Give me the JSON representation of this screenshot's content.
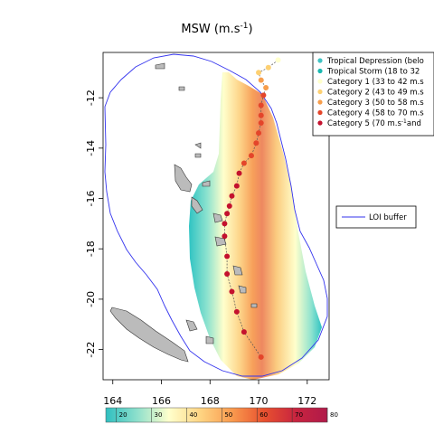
{
  "title": {
    "main": "MSW (m.s",
    "sup": "-1",
    "close": ")"
  },
  "x_axis": {
    "ticks": [
      {
        "v": 164,
        "label": "164"
      },
      {
        "v": 166,
        "label": "166"
      },
      {
        "v": 168,
        "label": "168"
      },
      {
        "v": 170,
        "label": "170"
      },
      {
        "v": 172,
        "label": "172"
      }
    ],
    "range": [
      163.6,
      172.9
    ]
  },
  "y_axis": {
    "ticks": [
      {
        "v": -12,
        "label": "-12"
      },
      {
        "v": -14,
        "label": "-14"
      },
      {
        "v": -16,
        "label": "-16"
      },
      {
        "v": -18,
        "label": "-18"
      },
      {
        "v": -20,
        "label": "-20"
      },
      {
        "v": -22,
        "label": "-22"
      }
    ],
    "range": [
      -23.2,
      -10.2
    ]
  },
  "legend": {
    "position": "top-right",
    "items": [
      {
        "label": "Tropical Depression (belo",
        "color": "#3fc3c3"
      },
      {
        "label": "Tropical Storm (18 to 32",
        "color": "#1ab8b0"
      },
      {
        "label": "Category 1 (33 to 42 m.s",
        "color": "#ffffcc"
      },
      {
        "label": "Category 2 (43 to 49 m.s",
        "color": "#fdd072"
      },
      {
        "label": "Category 3 (50 to 58 m.s",
        "color": "#f79e4c"
      },
      {
        "label": "Category 4 (58 to 70 m.s",
        "color": "#e4452a"
      },
      {
        "label": "Category 5 (70 m.s",
        "sup": "-1",
        "tail": "and",
        "color": "#c4122e"
      }
    ]
  },
  "loi_legend": {
    "label": "LOI buffer",
    "color": "#3333ee"
  },
  "colorbar": {
    "ticks": [
      {
        "v": 20,
        "label": "20"
      },
      {
        "v": 30,
        "label": "30"
      },
      {
        "v": 40,
        "label": "40"
      },
      {
        "v": 50,
        "label": "50"
      },
      {
        "v": 60,
        "label": "60"
      },
      {
        "v": 70,
        "label": "70"
      },
      {
        "v": 80,
        "label": "80"
      }
    ],
    "range": [
      17,
      80
    ],
    "colors": [
      "#2fbfc0",
      "#8fe0cc",
      "#ffffcc",
      "#fed482",
      "#f99a4e",
      "#e8512f",
      "#c8243f",
      "#b01a4a"
    ]
  },
  "chart_data": {
    "type": "map-track",
    "title": "MSW (m.s-1)",
    "track": [
      {
        "lon": 170.8,
        "lat": -10.5,
        "msw": 36
      },
      {
        "lon": 170.4,
        "lat": -10.8,
        "msw": 44
      },
      {
        "lon": 170.0,
        "lat": -11.0,
        "msw": 46
      },
      {
        "lon": 170.1,
        "lat": -11.3,
        "msw": 50
      },
      {
        "lon": 170.3,
        "lat": -11.6,
        "msw": 56
      },
      {
        "lon": 170.2,
        "lat": -11.9,
        "msw": 62
      },
      {
        "lon": 170.1,
        "lat": -12.3,
        "msw": 64
      },
      {
        "lon": 170.1,
        "lat": -12.7,
        "msw": 63
      },
      {
        "lon": 170.1,
        "lat": -13.0,
        "msw": 64
      },
      {
        "lon": 170.0,
        "lat": -13.4,
        "msw": 64
      },
      {
        "lon": 169.9,
        "lat": -13.8,
        "msw": 62
      },
      {
        "lon": 169.7,
        "lat": -14.3,
        "msw": 64
      },
      {
        "lon": 169.4,
        "lat": -14.6,
        "msw": 64
      },
      {
        "lon": 169.2,
        "lat": -15.0,
        "msw": 74
      },
      {
        "lon": 169.1,
        "lat": -15.5,
        "msw": 72
      },
      {
        "lon": 168.9,
        "lat": -15.9,
        "msw": 74
      },
      {
        "lon": 168.8,
        "lat": -16.3,
        "msw": 76
      },
      {
        "lon": 168.7,
        "lat": -16.6,
        "msw": 74
      },
      {
        "lon": 168.6,
        "lat": -17.0,
        "msw": 76
      },
      {
        "lon": 168.6,
        "lat": -17.5,
        "msw": 76
      },
      {
        "lon": 168.7,
        "lat": -18.3,
        "msw": 76
      },
      {
        "lon": 168.7,
        "lat": -19.0,
        "msw": 76
      },
      {
        "lon": 168.9,
        "lat": -19.7,
        "msw": 74
      },
      {
        "lon": 169.1,
        "lat": -20.5,
        "msw": 72
      },
      {
        "lon": 169.4,
        "lat": -21.3,
        "msw": 72
      },
      {
        "lon": 170.1,
        "lat": -22.3,
        "msw": 62
      }
    ]
  }
}
